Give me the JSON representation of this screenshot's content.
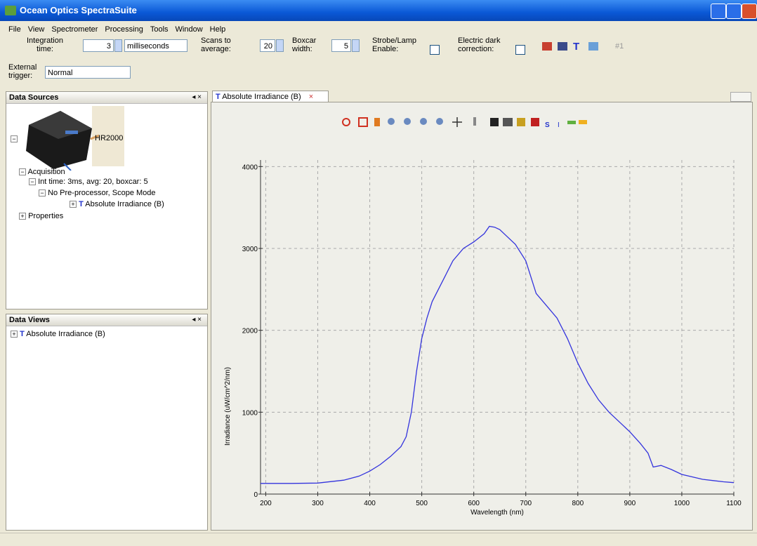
{
  "window": {
    "title": "Ocean Optics SpectraSuite"
  },
  "menu": [
    "File",
    "View",
    "Spectrometer",
    "Processing",
    "Tools",
    "Window",
    "Help"
  ],
  "toolbar": {
    "integration_label": "Integration time:",
    "integration_value": "3",
    "integration_unit": "milliseconds",
    "scans_label": "Scans to average:",
    "scans_value": "20",
    "boxcar_label": "Boxcar width:",
    "boxcar_value": "5",
    "strobe_label": "Strobe/Lamp Enable:",
    "dark_label": "Electric dark correction:",
    "counter": "#1",
    "trigger_label": "External trigger:",
    "trigger_value": "Normal"
  },
  "data_sources": {
    "title": "Data Sources",
    "device": "HR2000",
    "tree": [
      "Acquisition",
      "Int time: 3ms, avg: 20, boxcar: 5",
      "No Pre-processor, Scope Mode",
      "Absolute Irradiance (B)",
      "Properties"
    ]
  },
  "data_views": {
    "title": "Data Views",
    "tree": [
      "Absolute Irradiance (B)"
    ]
  },
  "tab": {
    "title": "Absolute Irradiance (B)"
  },
  "chart_data": {
    "type": "line",
    "x_label": "Wavelength (nm)",
    "y_label": "Irradiance (uW/cm^2/nm)",
    "x": [
      190,
      200,
      250,
      300,
      350,
      380,
      400,
      420,
      440,
      460,
      470,
      480,
      490,
      500,
      510,
      520,
      540,
      560,
      580,
      600,
      620,
      630,
      640,
      650,
      660,
      680,
      700,
      710,
      720,
      740,
      760,
      780,
      800,
      820,
      840,
      860,
      880,
      900,
      920,
      935,
      945,
      960,
      980,
      1000,
      1040,
      1080,
      1100
    ],
    "values": [
      130,
      130,
      130,
      135,
      170,
      220,
      280,
      360,
      460,
      580,
      700,
      1000,
      1500,
      1900,
      2150,
      2350,
      2600,
      2850,
      3000,
      3080,
      3180,
      3270,
      3260,
      3230,
      3170,
      3050,
      2850,
      2650,
      2450,
      2300,
      2150,
      1900,
      1600,
      1350,
      1150,
      1000,
      880,
      760,
      620,
      500,
      330,
      350,
      300,
      240,
      180,
      150,
      140
    ],
    "color": "#3333dd",
    "xlim": [
      190,
      1100
    ],
    "ylim": [
      0,
      4080
    ],
    "xticks": [
      200,
      300,
      400,
      500,
      600,
      700,
      800,
      900,
      1000,
      1100
    ],
    "yticks": [
      0,
      1000,
      2000,
      3000,
      4000
    ],
    "grid": true
  }
}
